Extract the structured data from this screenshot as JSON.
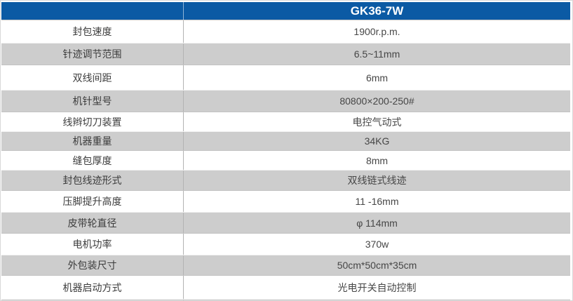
{
  "table": {
    "header": {
      "model": "GK36-7W"
    },
    "rows": [
      {
        "label": "封包速度",
        "value": "1900r.p.m."
      },
      {
        "label": "针迹调节范围",
        "value": "6.5~11mm"
      },
      {
        "label": "双线间距",
        "value": "6mm"
      },
      {
        "label": "机针型号",
        "value": "80800×200-250#"
      },
      {
        "label": "线辫切刀装置",
        "value": "电控气动式"
      },
      {
        "label": "机器重量",
        "value": "34KG"
      },
      {
        "label": "缝包厚度",
        "value": "8mm"
      },
      {
        "label": "封包线迹形式",
        "value": "双线链式线迹"
      },
      {
        "label": "压脚提升高度",
        "value": "11 -16mm"
      },
      {
        "label": "皮带轮直径",
        "value": "φ 114mm"
      },
      {
        "label": "电机功率",
        "value": "370w"
      },
      {
        "label": "外包装尺寸",
        "value": "50cm*50cm*35cm"
      },
      {
        "label": "机器启动方式",
        "value": "光电开关自动控制"
      }
    ],
    "colors": {
      "header_bg": "#0b5aa4",
      "header_text": "#ffffff",
      "row_bg": "#ffffff",
      "row_alt_bg": "#cdcdcd",
      "divider": "#b3b3b3",
      "label_text": "#3c3c3c",
      "value_text": "#464646"
    }
  }
}
